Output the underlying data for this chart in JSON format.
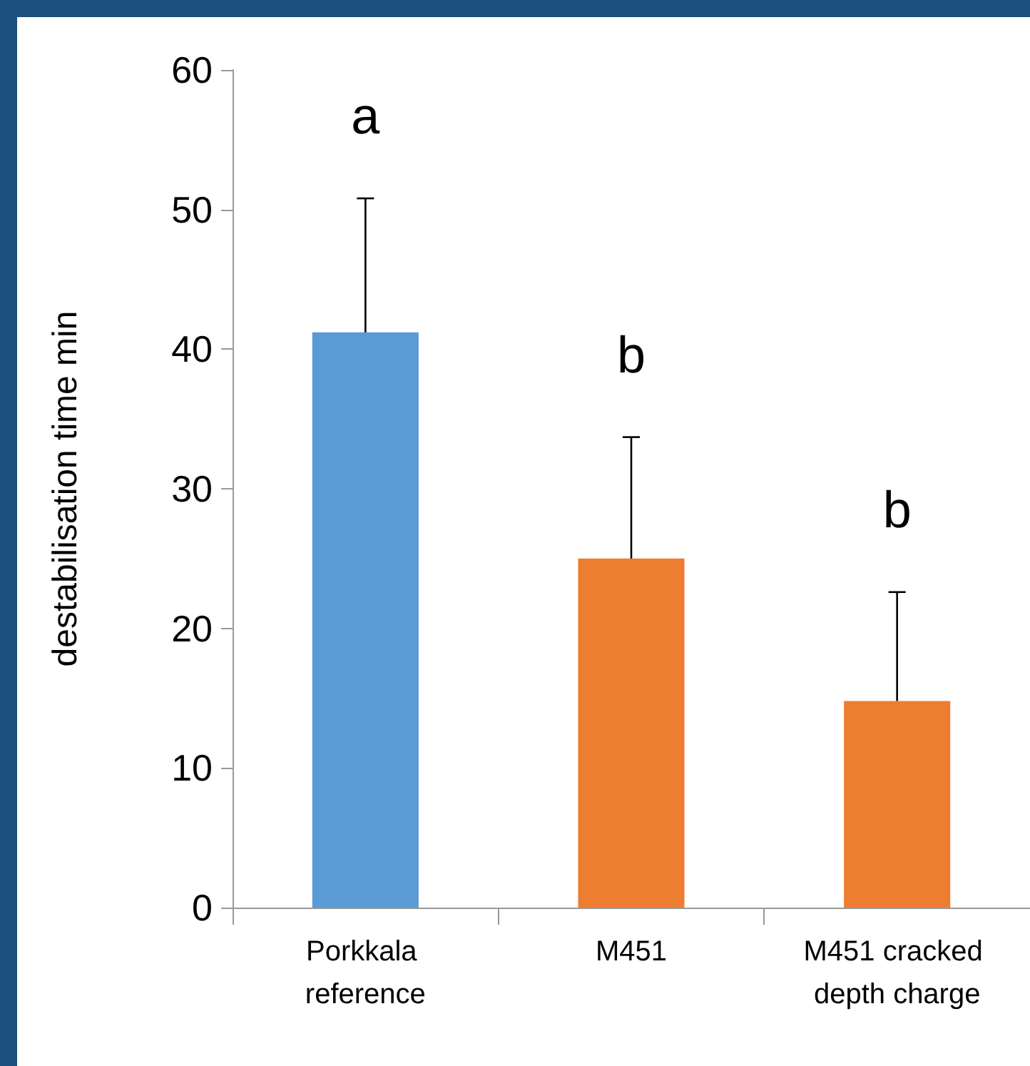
{
  "chart_data": {
    "type": "bar",
    "ylabel": "destabilisation time min",
    "categories": [
      "Porkkala reference",
      "M451",
      "M451 cracked depth charge"
    ],
    "values": [
      41.2,
      25.0,
      14.8
    ],
    "colors": [
      "#5b9bd5",
      "#ed7d31",
      "#ed7d31"
    ],
    "errors": [
      [
        41.2,
        50.8
      ],
      [
        25.0,
        33.7
      ],
      [
        14.8,
        22.6
      ]
    ],
    "ylim": [
      0,
      60
    ],
    "yticks": [
      0,
      10,
      20,
      30,
      40,
      50,
      60
    ],
    "grid": false,
    "annotations": [
      "a",
      "b",
      "b"
    ]
  }
}
